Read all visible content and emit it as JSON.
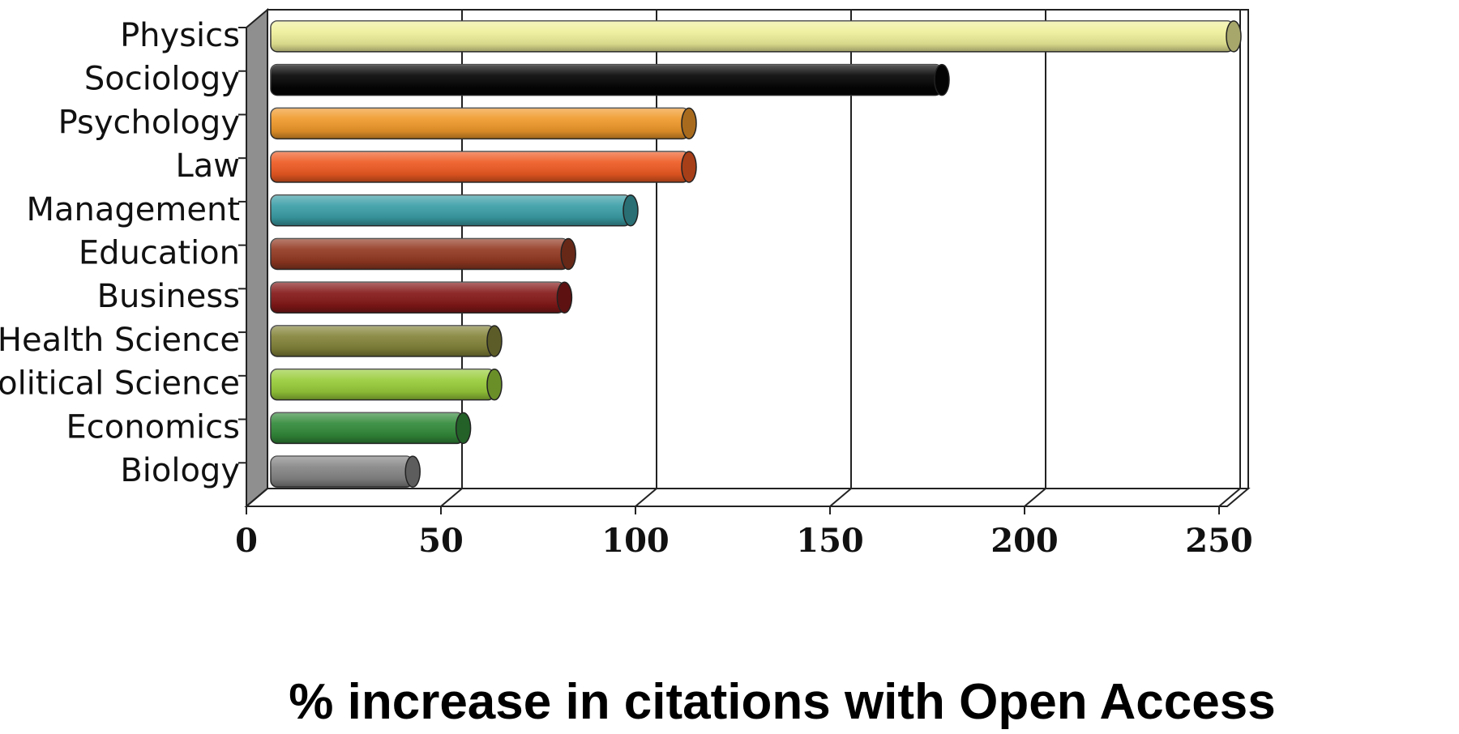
{
  "chart_data": {
    "type": "bar",
    "orientation": "horizontal",
    "style": "3d-cylinder",
    "categories": [
      "Physics",
      "Sociology",
      "Psychology",
      "Law",
      "Management",
      "Education",
      "Business",
      "Health Science",
      "Political Science",
      "Economics",
      "Biology"
    ],
    "values": [
      250,
      175,
      110,
      110,
      95,
      79,
      78,
      60,
      60,
      52,
      39
    ],
    "colors": [
      "#efef9a",
      "#050505",
      "#f0992a",
      "#ee5a22",
      "#3a9ea6",
      "#933922",
      "#851818",
      "#84843a",
      "#98cc3a",
      "#328a3a",
      "#858585"
    ],
    "xlabel": "% increase in citations with Open Access",
    "ylabel": "",
    "title": "",
    "xlim": [
      0,
      250
    ],
    "xticks": [
      0,
      50,
      100,
      150,
      200,
      250
    ],
    "grid": true
  }
}
